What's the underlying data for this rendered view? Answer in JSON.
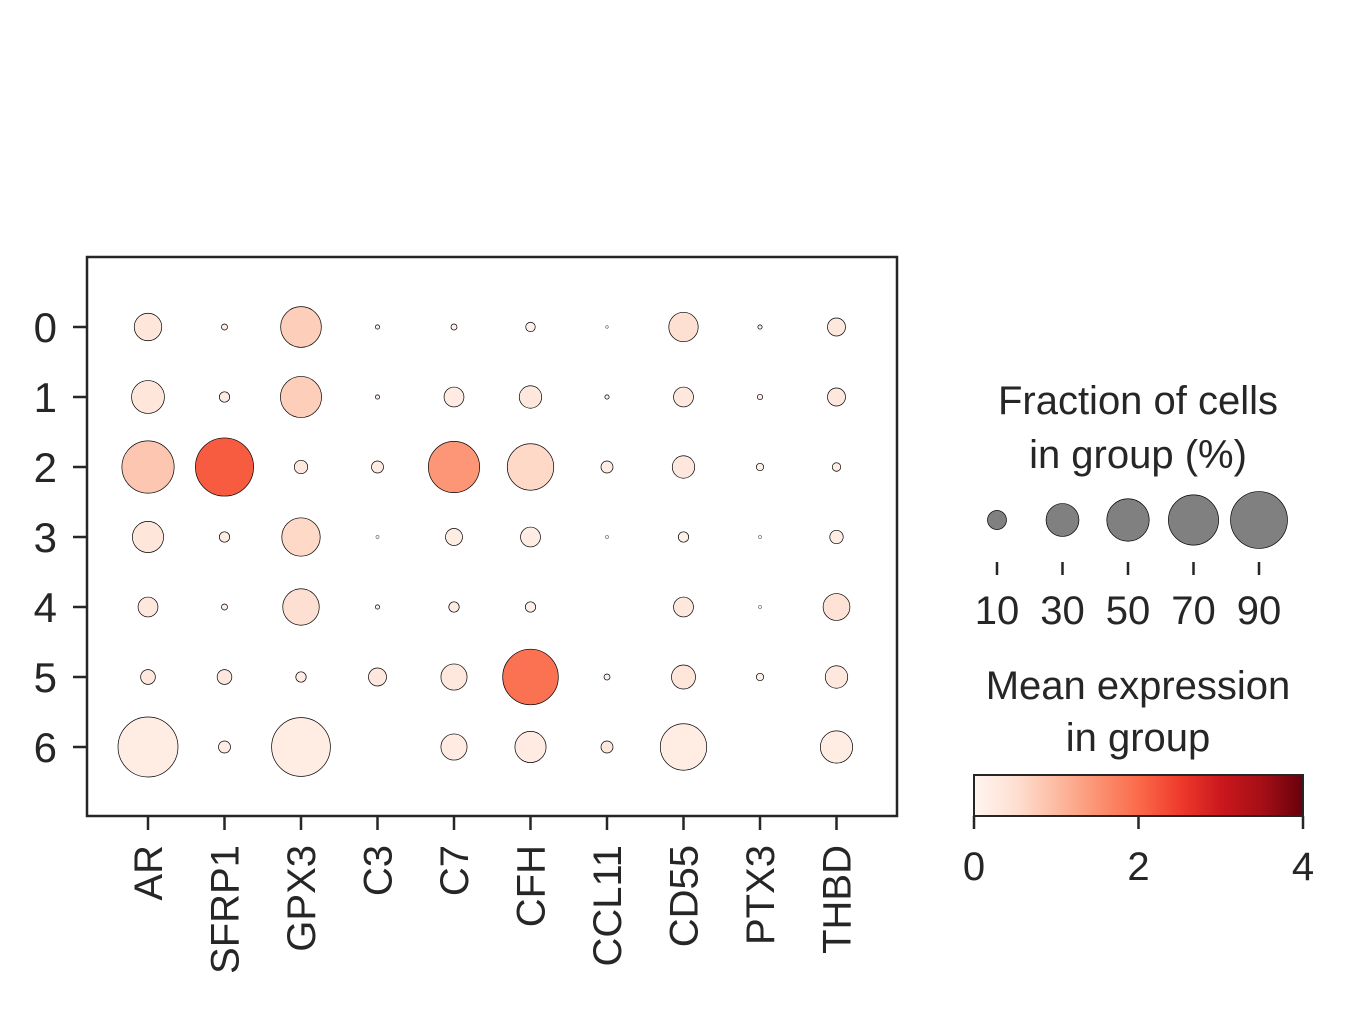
{
  "chart_data": {
    "type": "dotplot",
    "title": "",
    "xlabel": "",
    "ylabel": "",
    "genes": [
      "AR",
      "SFRP1",
      "GPX3",
      "C3",
      "C7",
      "CFH",
      "CCL11",
      "CD55",
      "PTX3",
      "THBD"
    ],
    "groups": [
      "0",
      "1",
      "2",
      "3",
      "4",
      "5",
      "6"
    ],
    "fraction_pct": [
      [
        21,
        1,
        46,
        0.5,
        1,
        2.5,
        0.2,
        24,
        0.5,
        9
      ],
      [
        30,
        3,
        47,
        0.5,
        11,
        14,
        0.5,
        11,
        0.8,
        9
      ],
      [
        76,
        94,
        5,
        4,
        73,
        60,
        4,
        14,
        1.5,
        2
      ],
      [
        27,
        3,
        41,
        0.3,
        8,
        11,
        0.3,
        3,
        0.3,
        5
      ],
      [
        11,
        1,
        37,
        0.5,
        3,
        3,
        0,
        11,
        0.3,
        20
      ],
      [
        6,
        6,
        3,
        9,
        19,
        86,
        1,
        16,
        1.5,
        14
      ],
      [
        100,
        4,
        96,
        0,
        19,
        27,
        4,
        60,
        0,
        29
      ]
    ],
    "mean_expression": [
      [
        0.35,
        0.2,
        0.75,
        0.1,
        0.1,
        0.1,
        0.1,
        0.5,
        0.1,
        0.3
      ],
      [
        0.35,
        0.2,
        0.75,
        0.1,
        0.25,
        0.3,
        0.1,
        0.3,
        0.1,
        0.3
      ],
      [
        0.85,
        2.15,
        0.3,
        0.25,
        1.45,
        0.6,
        0.2,
        0.3,
        0.1,
        0.2
      ],
      [
        0.35,
        0.2,
        0.6,
        0.1,
        0.2,
        0.2,
        0.1,
        0.1,
        0.1,
        0.2
      ],
      [
        0.3,
        0.2,
        0.5,
        0.1,
        0.2,
        0.1,
        0.0,
        0.3,
        0.1,
        0.45
      ],
      [
        0.3,
        0.3,
        0.2,
        0.3,
        0.3,
        1.9,
        0.1,
        0.35,
        0.1,
        0.3
      ],
      [
        0.2,
        0.2,
        0.2,
        0.0,
        0.25,
        0.25,
        0.3,
        0.2,
        0.0,
        0.2
      ]
    ],
    "colormap": "Reds",
    "colorbar_range": [
      0,
      4
    ],
    "size_legend": {
      "title_line1": "Fraction of cells",
      "title_line2": "in group (%)",
      "values": [
        10,
        30,
        50,
        70,
        90
      ],
      "labels": [
        "10",
        "30",
        "50",
        "70",
        "90"
      ],
      "dot_color": "#808080"
    },
    "color_legend": {
      "title_line1": "Mean expression",
      "title_line2": "in group",
      "ticks": [
        0,
        2,
        4
      ],
      "tick_labels": [
        "0",
        "2",
        "4"
      ]
    },
    "colors": {
      "axis": "#262626",
      "dot_edge": "#000000"
    }
  }
}
